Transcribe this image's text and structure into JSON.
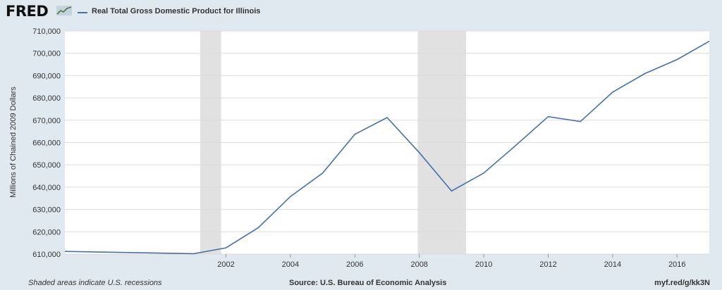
{
  "header": {
    "logo_text": "FRED",
    "series_label": "Real Total Gross Domestic Product for Illinois"
  },
  "footer": {
    "note": "Shaded areas indicate U.S. recessions",
    "source": "Source: U.S. Bureau of Economic Analysis",
    "link": "myf.red/g/kk3N"
  },
  "colors": {
    "background": "#e1e9f0",
    "plot_background": "#ffffff",
    "line": "#4572a7",
    "recession": "#e1e1e1",
    "grid": "#dcdcdc"
  },
  "chart_data": {
    "type": "line",
    "title": "",
    "ylabel": "Millions of Chained 2009 Dollars",
    "xlabel": "",
    "ylim": [
      610000,
      710000
    ],
    "xlim": [
      1997,
      2017
    ],
    "yticks": [
      610000,
      620000,
      630000,
      640000,
      650000,
      660000,
      670000,
      680000,
      690000,
      700000,
      710000
    ],
    "ytick_labels": [
      "610,000",
      "620,000",
      "630,000",
      "640,000",
      "650,000",
      "660,000",
      "670,000",
      "680,000",
      "690,000",
      "700,000",
      "710,000"
    ],
    "xticks": [
      2002,
      2004,
      2006,
      2008,
      2010,
      2012,
      2014,
      2016
    ],
    "xtick_labels": [
      "2002",
      "2004",
      "2006",
      "2008",
      "2010",
      "2012",
      "2014",
      "2016"
    ],
    "grid": true,
    "recessions": [
      {
        "start": 2001.2,
        "end": 2001.85
      },
      {
        "start": 2007.95,
        "end": 2009.45
      }
    ],
    "series": [
      {
        "name": "Real Total Gross Domestic Product for Illinois",
        "x": [
          1997,
          2001,
          2002,
          2003,
          2004,
          2005,
          2006,
          2007,
          2008,
          2009,
          2010,
          2011,
          2012,
          2013,
          2014,
          2015,
          2016,
          2017
        ],
        "values": [
          611200,
          610200,
          612800,
          621800,
          635800,
          646300,
          663700,
          671200,
          655500,
          638300,
          646300,
          658800,
          671600,
          669400,
          682600,
          690900,
          697200,
          705400
        ]
      }
    ]
  }
}
